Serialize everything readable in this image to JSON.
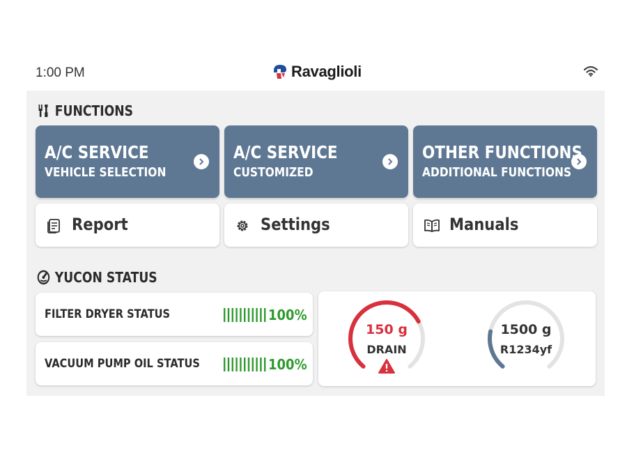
{
  "statusbar": {
    "time": "1:00 PM",
    "brand": "Ravaglioli"
  },
  "functions": {
    "title": "FUNCTIONS",
    "cards": [
      {
        "title": "A/C SERVICE",
        "subtitle": "VEHICLE SELECTION"
      },
      {
        "title": "A/C SERVICE",
        "subtitle": "CUSTOMIZED"
      },
      {
        "title": "OTHER FUNCTIONS",
        "subtitle": "ADDITIONAL FUNCTIONS"
      }
    ],
    "buttons": [
      {
        "label": "Report",
        "icon": "report-icon"
      },
      {
        "label": "Settings",
        "icon": "gear-icon"
      },
      {
        "label": "Manuals",
        "icon": "book-icon"
      }
    ]
  },
  "yucon_status": {
    "title": "YUCON STATUS",
    "rows": [
      {
        "label": "FILTER DRYER STATUS",
        "percent": "100%",
        "level": 1.0
      },
      {
        "label": "VACUUM PUMP OIL STATUS",
        "percent": "100%",
        "level": 1.0
      }
    ],
    "gauges": [
      {
        "value": "150 g",
        "label": "DRAIN",
        "level": 0.72,
        "color": "#d9303e",
        "warning": true
      },
      {
        "value": "1500 g",
        "label": "R1234yf",
        "level": 0.22,
        "color": "#5e7894",
        "warning": false
      }
    ]
  },
  "colors": {
    "card_blue": "#5e7894",
    "ok_green": "#2e9a2e",
    "alert_red": "#d9303e",
    "track_gray": "#e3e3e3"
  }
}
